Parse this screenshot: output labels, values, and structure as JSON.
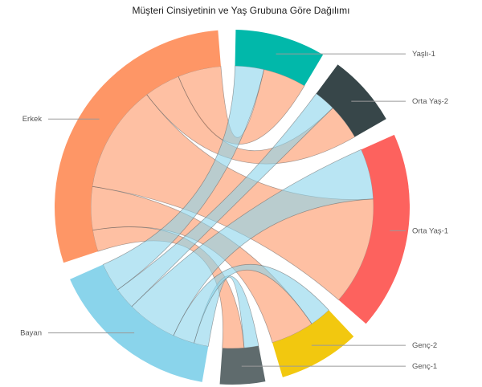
{
  "chart_data": {
    "type": "chord",
    "title": "Müşteri Cinsiyetinin ve Yaş Grubuna Göre Dağılımı",
    "groups": [
      {
        "name": "Yaşlı-1",
        "color": "#01B8AA"
      },
      {
        "name": "Orta Yaş-2",
        "color": "#374649"
      },
      {
        "name": "Orta Yaş-1",
        "color": "#FD625E"
      },
      {
        "name": "Genç-2",
        "color": "#F2C80F"
      },
      {
        "name": "Genç-1",
        "color": "#5F6B6D"
      },
      {
        "name": "Bayan",
        "color": "#8AD4EB"
      },
      {
        "name": "Erkek",
        "color": "#FE9666"
      }
    ],
    "gender_groups": [
      "Erkek",
      "Bayan"
    ],
    "age_groups": [
      "Yaşlı-1",
      "Orta Yaş-2",
      "Orta Yaş-1",
      "Genç-2",
      "Genç-1"
    ],
    "flows": {
      "Erkek": {
        "Yaşlı-1": 6,
        "Orta Yaş-2": 5,
        "Orta Yaş-1": 15,
        "Genç-2": 6,
        "Genç-1": 3
      },
      "Bayan": {
        "Yaşlı-1": 4,
        "Orta Yaş-2": 3,
        "Orta Yaş-1": 7,
        "Genç-2": 3,
        "Genç-1": 2
      }
    }
  }
}
